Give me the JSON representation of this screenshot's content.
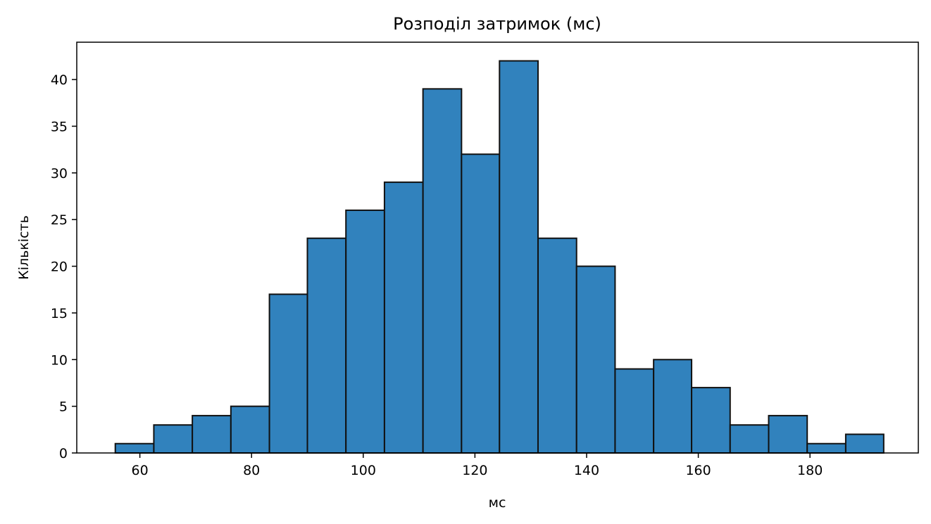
{
  "chart_data": {
    "type": "histogram",
    "title": "Розподіл затримок (мс)",
    "xlabel": "мс",
    "ylabel": "Кількість",
    "xlim": [
      48.7,
      199.4
    ],
    "ylim": [
      0,
      44
    ],
    "xticks": [
      60,
      80,
      100,
      120,
      140,
      160,
      180
    ],
    "yticks": [
      0,
      5,
      10,
      15,
      20,
      25,
      30,
      35,
      40
    ],
    "bin_edges": [
      55.6,
      62.5,
      69.4,
      76.3,
      83.2,
      90.0,
      96.9,
      103.8,
      110.7,
      117.6,
      124.4,
      131.3,
      138.2,
      145.1,
      152.0,
      158.8,
      165.7,
      172.6,
      179.5,
      186.4,
      193.2
    ],
    "counts": [
      1,
      3,
      4,
      5,
      17,
      23,
      26,
      29,
      39,
      32,
      42,
      23,
      20,
      9,
      10,
      7,
      3,
      4,
      1,
      2
    ],
    "bar_color": "#3182bd",
    "edge_color": "#111111",
    "grid": false
  }
}
